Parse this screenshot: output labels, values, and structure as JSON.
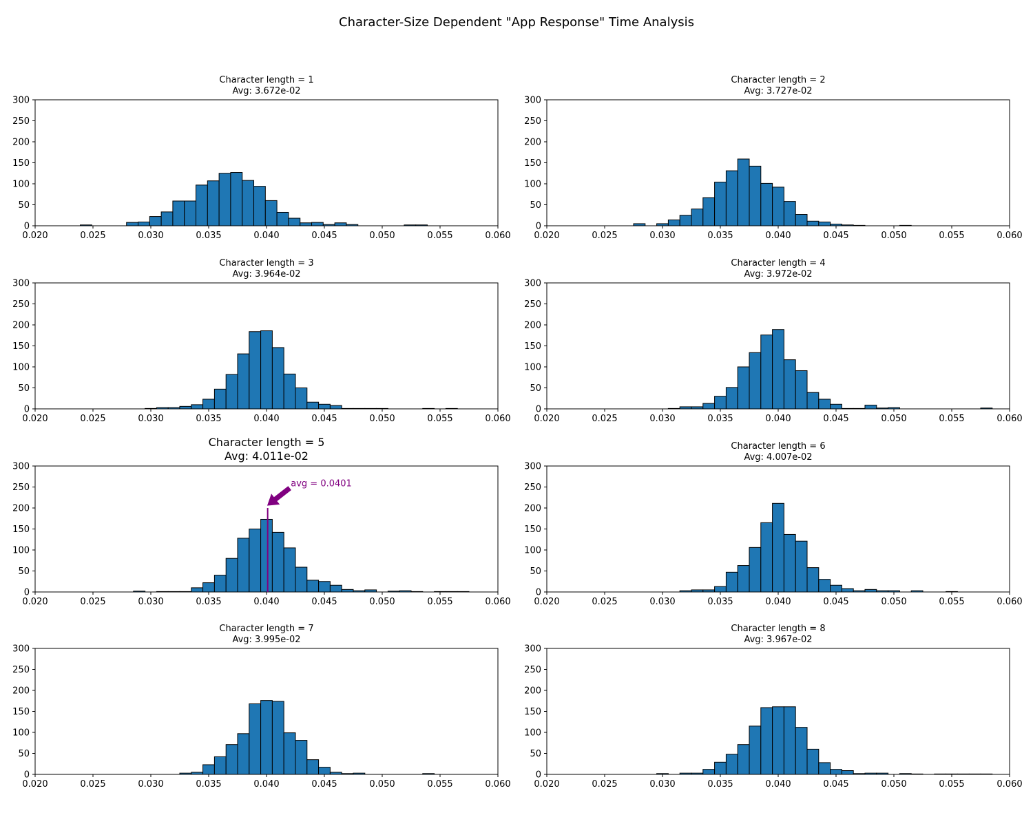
{
  "title": "Character-Size Dependent \"App Response\" Time Analysis",
  "chart_data": [
    {
      "type": "bar",
      "title": "Character length = 1",
      "subtitle": "Avg: 3.672e-02",
      "xlim": [
        0.02,
        0.06
      ],
      "ylim": [
        0,
        300
      ],
      "xticks": [
        "0.020",
        "0.025",
        "0.030",
        "0.035",
        "0.040",
        "0.045",
        "0.050",
        "0.055",
        "0.060"
      ],
      "yticks": [
        "0",
        "50",
        "100",
        "150",
        "200",
        "250",
        "300"
      ],
      "bin_edges": [
        0.0239,
        0.0249,
        0.0259,
        0.0269,
        0.0279,
        0.0289,
        0.0299,
        0.0309,
        0.0319,
        0.0329,
        0.0339,
        0.0349,
        0.0359,
        0.0369,
        0.0379,
        0.0389,
        0.0399,
        0.0409,
        0.0419,
        0.0429,
        0.0439,
        0.0449,
        0.0459,
        0.0469,
        0.0479,
        0.0489,
        0.0499,
        0.0509,
        0.0519,
        0.0529,
        0.0539
      ],
      "counts": [
        2,
        0,
        0,
        0,
        8,
        9,
        22,
        33,
        59,
        59,
        97,
        107,
        125,
        127,
        108,
        94,
        60,
        32,
        18,
        7,
        8,
        3,
        7,
        3,
        0,
        0,
        0,
        0,
        2,
        2
      ],
      "color": "#1f77b4",
      "highlight": false
    },
    {
      "type": "bar",
      "title": "Character length = 2",
      "subtitle": "Avg: 3.727e-02",
      "xlim": [
        0.02,
        0.06
      ],
      "ylim": [
        0,
        300
      ],
      "xticks": [
        "0.020",
        "0.025",
        "0.030",
        "0.035",
        "0.040",
        "0.045",
        "0.050",
        "0.055",
        "0.060"
      ],
      "yticks": [
        "0",
        "50",
        "100",
        "150",
        "200",
        "250",
        "300"
      ],
      "bin_edges": [
        0.0275,
        0.0285,
        0.0295,
        0.0305,
        0.0315,
        0.0325,
        0.0335,
        0.0345,
        0.0355,
        0.0365,
        0.0375,
        0.0385,
        0.0395,
        0.0405,
        0.0415,
        0.0425,
        0.0435,
        0.0445,
        0.0455,
        0.0465,
        0.0475,
        0.0485,
        0.0495,
        0.0505,
        0.0515
      ],
      "counts": [
        5,
        0,
        5,
        14,
        25,
        40,
        67,
        104,
        131,
        159,
        142,
        101,
        92,
        58,
        27,
        11,
        9,
        4,
        2,
        1,
        0,
        0,
        0,
        1
      ],
      "color": "#1f77b4",
      "highlight": false
    },
    {
      "type": "bar",
      "title": "Character length = 3",
      "subtitle": "Avg: 3.964e-02",
      "xlim": [
        0.02,
        0.06
      ],
      "ylim": [
        0,
        300
      ],
      "xticks": [
        "0.020",
        "0.025",
        "0.030",
        "0.035",
        "0.040",
        "0.045",
        "0.050",
        "0.055",
        "0.060"
      ],
      "yticks": [
        "0",
        "50",
        "100",
        "150",
        "200",
        "250",
        "300"
      ],
      "bin_edges": [
        0.0295,
        0.0305,
        0.0315,
        0.0325,
        0.0335,
        0.0345,
        0.0355,
        0.0365,
        0.0375,
        0.0385,
        0.0395,
        0.0405,
        0.0415,
        0.0425,
        0.0435,
        0.0445,
        0.0455,
        0.0465,
        0.0475,
        0.0485,
        0.0495,
        0.0505,
        0.0515,
        0.0525,
        0.0535,
        0.0545,
        0.0555,
        0.0565
      ],
      "counts": [
        1,
        3,
        3,
        6,
        10,
        23,
        47,
        82,
        131,
        184,
        186,
        146,
        83,
        50,
        16,
        11,
        8,
        1,
        1,
        1,
        1,
        0,
        0,
        0,
        1,
        0,
        1
      ],
      "color": "#1f77b4",
      "highlight": false
    },
    {
      "type": "bar",
      "title": "Character length = 4",
      "subtitle": "Avg: 3.972e-02",
      "xlim": [
        0.02,
        0.06
      ],
      "ylim": [
        0,
        300
      ],
      "xticks": [
        "0.020",
        "0.025",
        "0.030",
        "0.035",
        "0.040",
        "0.045",
        "0.050",
        "0.055",
        "0.060"
      ],
      "yticks": [
        "0",
        "50",
        "100",
        "150",
        "200",
        "250",
        "300"
      ],
      "bin_edges": [
        0.0305,
        0.0315,
        0.0325,
        0.0335,
        0.0345,
        0.0355,
        0.0365,
        0.0375,
        0.0385,
        0.0395,
        0.0405,
        0.0415,
        0.0425,
        0.0435,
        0.0445,
        0.0455,
        0.0465,
        0.0475,
        0.0485,
        0.0495,
        0.0505,
        0.0515,
        0.0525,
        0.0535,
        0.0545,
        0.0555,
        0.0565,
        0.0575,
        0.0585
      ],
      "counts": [
        1,
        5,
        5,
        13,
        30,
        51,
        100,
        134,
        176,
        189,
        117,
        91,
        39,
        23,
        11,
        1,
        1,
        9,
        2,
        3,
        0,
        0,
        0,
        0,
        0,
        0,
        0,
        2
      ],
      "color": "#1f77b4",
      "highlight": false
    },
    {
      "type": "bar",
      "title": "Character length = 5",
      "subtitle": "Avg: 4.011e-02",
      "xlim": [
        0.02,
        0.06
      ],
      "ylim": [
        0,
        300
      ],
      "xticks": [
        "0.020",
        "0.025",
        "0.030",
        "0.035",
        "0.040",
        "0.045",
        "0.050",
        "0.055",
        "0.060"
      ],
      "yticks": [
        "0",
        "50",
        "100",
        "150",
        "200",
        "250",
        "300"
      ],
      "bin_edges": [
        0.0285,
        0.0295,
        0.0305,
        0.0315,
        0.0325,
        0.0335,
        0.0345,
        0.0355,
        0.0365,
        0.0375,
        0.0385,
        0.0395,
        0.0405,
        0.0415,
        0.0425,
        0.0435,
        0.0445,
        0.0455,
        0.0465,
        0.0475,
        0.0485,
        0.0495,
        0.0505,
        0.0515,
        0.0525,
        0.0535,
        0.0545,
        0.0555,
        0.0565,
        0.0575
      ],
      "counts": [
        2,
        0,
        1,
        1,
        1,
        10,
        22,
        40,
        80,
        128,
        150,
        173,
        142,
        105,
        59,
        28,
        25,
        16,
        6,
        3,
        5,
        0,
        2,
        3,
        1,
        0,
        1,
        1,
        1
      ],
      "color": "#1f77b4",
      "highlight": true,
      "annotation": {
        "text": "avg = 0.0401",
        "x": 0.0401,
        "y": 200,
        "text_x": 0.0421,
        "text_y": 260,
        "color": "#800080"
      }
    },
    {
      "type": "bar",
      "title": "Character length = 6",
      "subtitle": "Avg: 4.007e-02",
      "xlim": [
        0.02,
        0.06
      ],
      "ylim": [
        0,
        300
      ],
      "xticks": [
        "0.020",
        "0.025",
        "0.030",
        "0.035",
        "0.040",
        "0.045",
        "0.050",
        "0.055",
        "0.060"
      ],
      "yticks": [
        "0",
        "50",
        "100",
        "150",
        "200",
        "250",
        "300"
      ],
      "bin_edges": [
        0.0315,
        0.0325,
        0.0335,
        0.0345,
        0.0355,
        0.0365,
        0.0375,
        0.0385,
        0.0395,
        0.0405,
        0.0415,
        0.0425,
        0.0435,
        0.0445,
        0.0455,
        0.0465,
        0.0475,
        0.0485,
        0.0495,
        0.0505,
        0.0515,
        0.0525,
        0.0535,
        0.0545,
        0.0555
      ],
      "counts": [
        3,
        5,
        5,
        13,
        47,
        63,
        106,
        165,
        211,
        137,
        121,
        58,
        30,
        16,
        8,
        3,
        6,
        3,
        3,
        0,
        3,
        0,
        0,
        1
      ],
      "color": "#1f77b4",
      "highlight": false
    },
    {
      "type": "bar",
      "title": "Character length = 7",
      "subtitle": "Avg: 3.995e-02",
      "xlim": [
        0.02,
        0.06
      ],
      "ylim": [
        0,
        300
      ],
      "xticks": [
        "0.020",
        "0.025",
        "0.030",
        "0.035",
        "0.040",
        "0.045",
        "0.050",
        "0.055",
        "0.060"
      ],
      "yticks": [
        "0",
        "50",
        "100",
        "150",
        "200",
        "250",
        "300"
      ],
      "bin_edges": [
        0.0325,
        0.0335,
        0.0345,
        0.0355,
        0.0365,
        0.0375,
        0.0385,
        0.0395,
        0.0405,
        0.0415,
        0.0425,
        0.0435,
        0.0445,
        0.0455,
        0.0465,
        0.0475,
        0.0485,
        0.0495,
        0.0505,
        0.0515,
        0.0525,
        0.0535,
        0.0545
      ],
      "counts": [
        3,
        5,
        23,
        42,
        71,
        97,
        168,
        176,
        174,
        99,
        81,
        35,
        17,
        5,
        2,
        3,
        0,
        0,
        0,
        0,
        0,
        2
      ],
      "color": "#1f77b4",
      "highlight": false
    },
    {
      "type": "bar",
      "title": "Character length = 8",
      "subtitle": "Avg: 3.967e-02",
      "xlim": [
        0.02,
        0.06
      ],
      "ylim": [
        0,
        300
      ],
      "xticks": [
        "0.020",
        "0.025",
        "0.030",
        "0.035",
        "0.040",
        "0.045",
        "0.050",
        "0.055",
        "0.060"
      ],
      "yticks": [
        "0",
        "50",
        "100",
        "150",
        "200",
        "250",
        "300"
      ],
      "bin_edges": [
        0.0295,
        0.0305,
        0.0315,
        0.0325,
        0.0335,
        0.0345,
        0.0355,
        0.0365,
        0.0375,
        0.0385,
        0.0395,
        0.0405,
        0.0415,
        0.0425,
        0.0435,
        0.0445,
        0.0455,
        0.0465,
        0.0475,
        0.0485,
        0.0495,
        0.0505,
        0.0515,
        0.0525,
        0.0535,
        0.0545,
        0.0555,
        0.0565,
        0.0575,
        0.0585
      ],
      "counts": [
        2,
        0,
        3,
        3,
        12,
        29,
        48,
        71,
        115,
        159,
        161,
        161,
        112,
        60,
        28,
        12,
        9,
        2,
        3,
        3,
        0,
        2,
        1,
        0,
        1,
        1,
        1,
        1,
        1
      ],
      "color": "#1f77b4",
      "highlight": false
    }
  ]
}
